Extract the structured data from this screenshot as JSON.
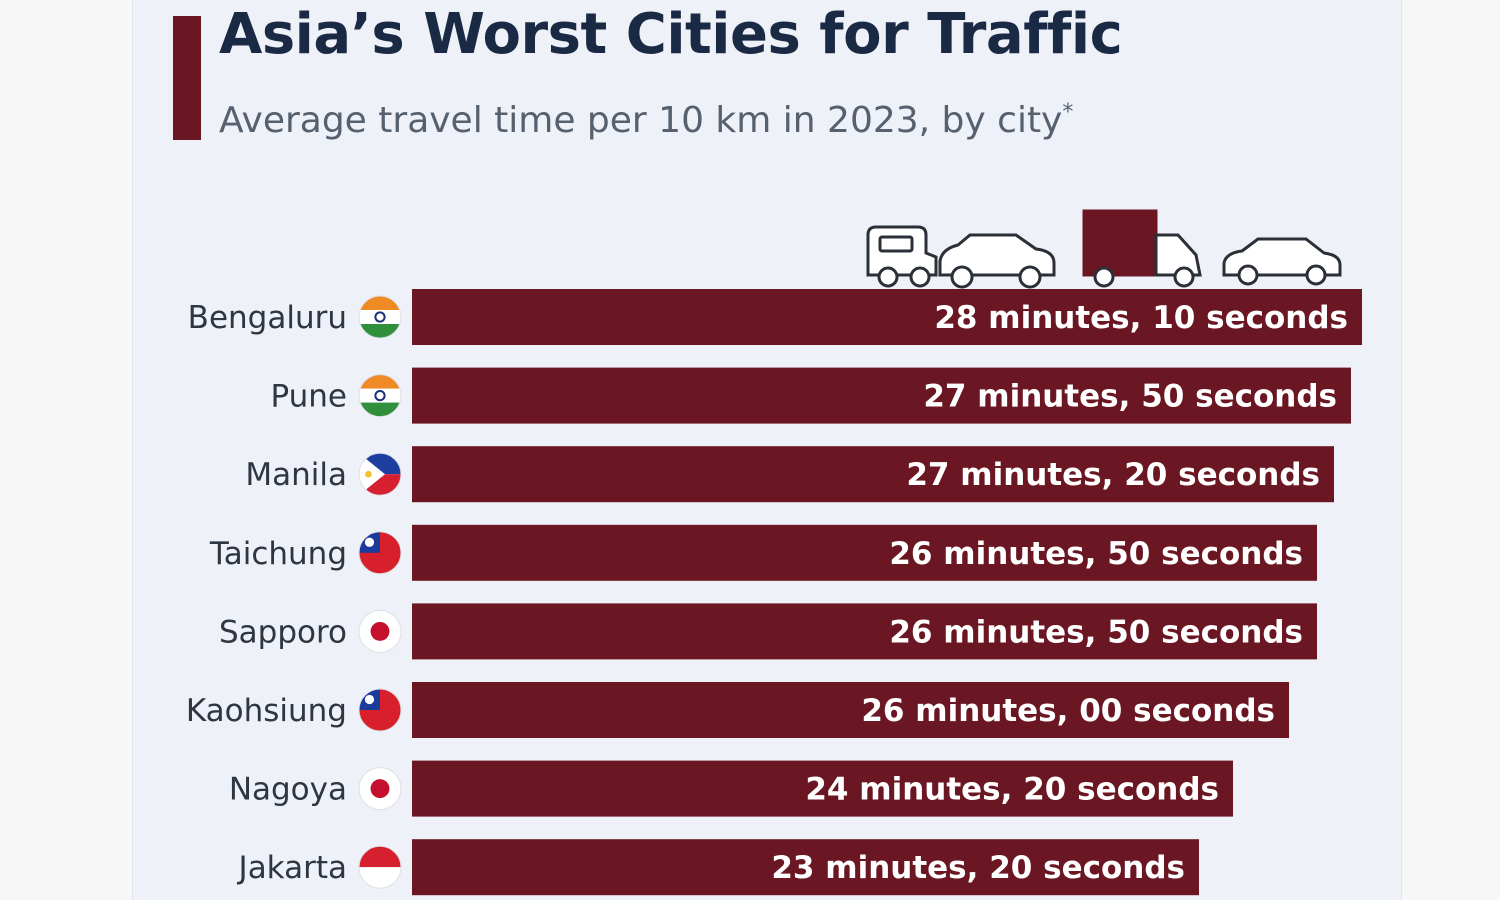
{
  "chart_data": {
    "type": "bar",
    "orientation": "horizontal",
    "title": "Asia’s Worst Cities for Traffic",
    "subtitle": "Average travel time per 10 km in 2023, by city",
    "subtitle_mark": "*",
    "xlabel": "",
    "ylabel": "",
    "unit": "seconds",
    "xlim": [
      0,
      1690
    ],
    "grid": false,
    "categories": [
      "Bengaluru",
      "Pune",
      "Manila",
      "Taichung",
      "Sapporo",
      "Kaohsiung",
      "Nagoya",
      "Jakarta"
    ],
    "flags": [
      "india",
      "india",
      "philippines",
      "taiwan",
      "japan",
      "taiwan",
      "japan",
      "indonesia"
    ],
    "values": [
      1690,
      1670,
      1640,
      1610,
      1610,
      1560,
      1460,
      1400
    ],
    "labels": [
      "28 minutes, 10 seconds",
      "27 minutes, 50 seconds",
      "27 minutes, 20 seconds",
      "26 minutes, 50 seconds",
      "26 minutes, 50 seconds",
      "26 minutes, 00 seconds",
      "24 minutes, 20 seconds",
      "23 minutes, 20 seconds"
    ]
  },
  "colors": {
    "bar": "#6b1723",
    "title": "#1a2a44",
    "subtitle": "#56606e",
    "background": "#eef1f7"
  },
  "icons": [
    "minibus-icon",
    "car-icon",
    "truck-icon",
    "car-icon"
  ]
}
